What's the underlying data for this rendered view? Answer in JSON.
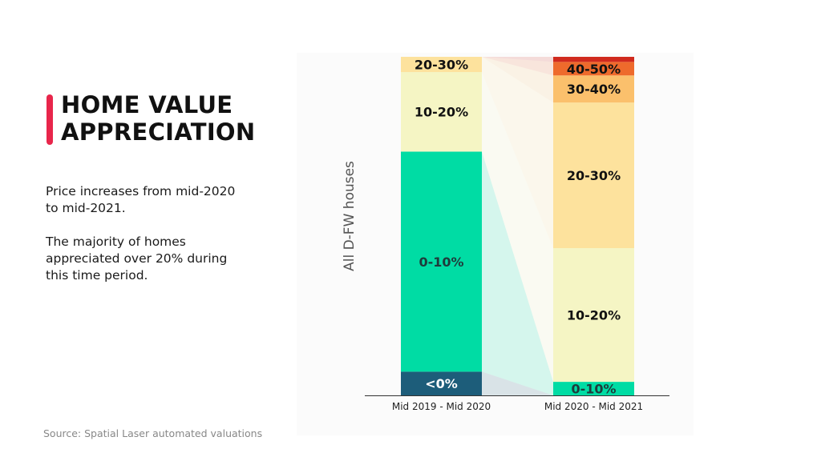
{
  "title_line1": "HOME VALUE",
  "title_line2": "APPRECIATION",
  "description": [
    "Price increases from mid-2020 to mid-2021.",
    "The majority of homes appreciated over 20% during this time period."
  ],
  "source": "Source: Spatial Laser automated valuations",
  "colors": {
    "accent": "#e8264b",
    "lt0": "#1d5d7a",
    "0-10": "#00dca4",
    "10-20": "#f5f5c4",
    "20-30": "#fde29d",
    "30-40": "#fbc06c",
    "40-50": "#ee6a2c",
    "50plus": "#d02a1e"
  },
  "chart_data": {
    "type": "bar",
    "stacked": true,
    "normalized": true,
    "ylabel": "All D-FW houses",
    "categories": [
      "Mid 2019 - Mid 2020",
      "Mid 2020 - Mid 2021"
    ],
    "series": [
      {
        "name": "<0%",
        "key": "lt0",
        "values": [
          7,
          0
        ]
      },
      {
        "name": "0-10%",
        "key": "0-10",
        "values": [
          65,
          4
        ]
      },
      {
        "name": "10-20%",
        "key": "10-20",
        "values": [
          23.5,
          39.5
        ]
      },
      {
        "name": "20-30%",
        "key": "20-30",
        "values": [
          4.5,
          43
        ]
      },
      {
        "name": "30-40%",
        "key": "30-40",
        "values": [
          0,
          8
        ]
      },
      {
        "name": "40-50%",
        "key": "40-50",
        "values": [
          0,
          4
        ]
      },
      {
        "name": "",
        "key": "50plus",
        "values": [
          0,
          1.5
        ]
      }
    ],
    "labels": [
      {
        "text": "<0%",
        "bar": 0,
        "series": 0
      },
      {
        "text": "0-10%",
        "bar": 0,
        "series": 1
      },
      {
        "text": "10-20%",
        "bar": 0,
        "series": 2
      },
      {
        "text": "20-30%",
        "bar": 0,
        "series": 3
      },
      {
        "text": "0-10%",
        "bar": 1,
        "series": 1
      },
      {
        "text": "10-20%",
        "bar": 1,
        "series": 2
      },
      {
        "text": "20-30%",
        "bar": 1,
        "series": 3
      },
      {
        "text": "30-40%",
        "bar": 1,
        "series": 4
      },
      {
        "text": "40-50%",
        "bar": 1,
        "series": 5
      }
    ],
    "ylim": [
      0,
      100
    ]
  }
}
